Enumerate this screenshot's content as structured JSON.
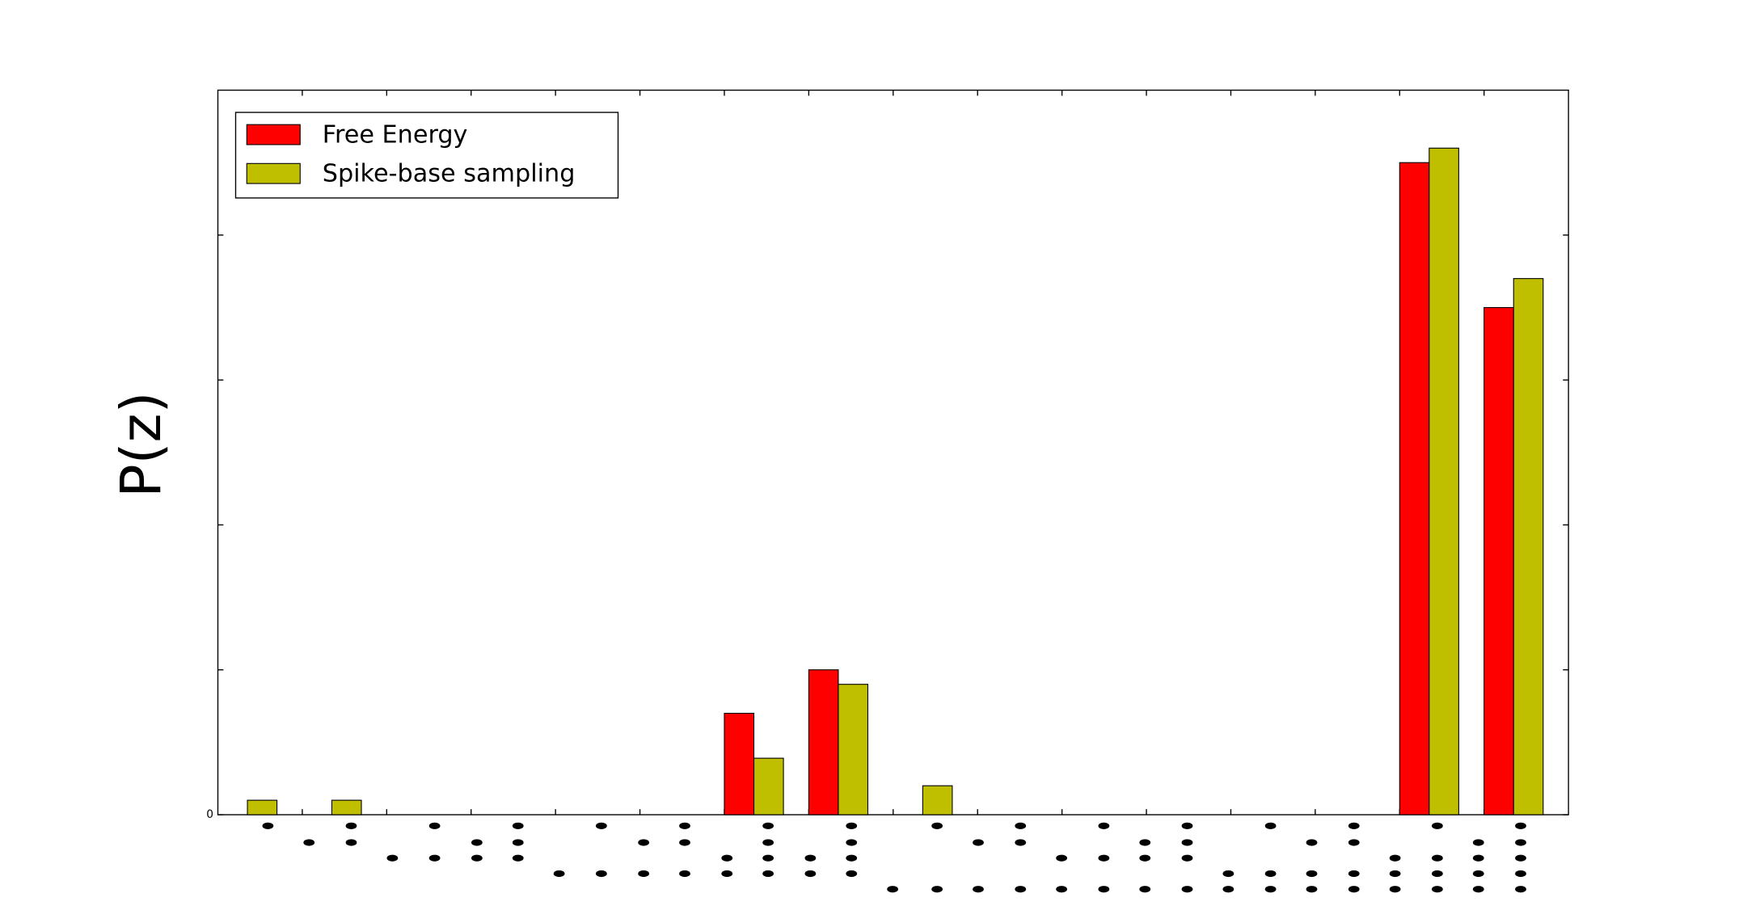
{
  "chart_data": {
    "type": "bar",
    "ylabel": "P(z)",
    "categories": [
      null,
      null,
      null,
      null,
      null,
      null,
      null,
      null,
      null,
      null,
      null,
      null,
      null,
      null,
      null,
      null
    ],
    "series": [
      {
        "name": "Free Energy",
        "color": "#ff0000",
        "values": [
          0,
          0,
          0,
          0,
          0,
          0,
          0.7,
          1.0,
          0,
          0,
          0,
          0,
          0,
          0,
          4.5,
          3.5
        ]
      },
      {
        "name": "Spike-base sampling",
        "color": "#bfbf00",
        "values": [
          0.1,
          0.1,
          0,
          0,
          0,
          0,
          0.39,
          0.9,
          0.2,
          0,
          0,
          0,
          0,
          0,
          4.6,
          3.7
        ]
      }
    ],
    "ylim": [
      0,
      5
    ],
    "yticks": [
      0
    ],
    "unlabeled_yticks": [
      1,
      2,
      3,
      4
    ],
    "legend": "upper left"
  }
}
